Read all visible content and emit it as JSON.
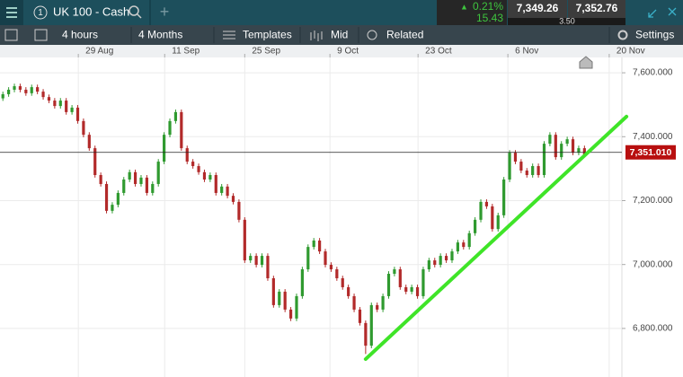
{
  "toolbar": {
    "tab_number": "1",
    "instrument": "UK 100 - Cash",
    "change_pct": "0.21%",
    "change_pts": "15.43",
    "sell": "7,349.26",
    "spread": "3.50",
    "buy": "7,352.76"
  },
  "controls": {
    "interval": "4 hours",
    "range": "4 Months",
    "templates": "Templates",
    "price_mode": "Mid",
    "related": "Related",
    "settings": "Settings"
  },
  "chart_data": {
    "type": "candlestick",
    "up_color": "#2f9a2f",
    "down_color": "#b22a2a",
    "open": [
      7520,
      7533,
      7547,
      7558,
      7547,
      7536,
      7555,
      7541,
      7524,
      7513,
      7496,
      7513,
      7477,
      7491,
      7449,
      7406,
      7364,
      7280,
      7252,
      7168,
      7187,
      7224,
      7266,
      7289,
      7252,
      7272,
      7224,
      7252,
      7322,
      7406,
      7449,
      7477,
      7364,
      7322,
      7308,
      7289,
      7266,
      7280,
      7224,
      7244,
      7215,
      7196,
      7140,
      7013,
      7027,
      6999,
      7027,
      6957,
      6873,
      6915,
      6859,
      6831,
      6901,
      6985,
      7055,
      7075,
      7041,
      6999,
      6985,
      6957,
      6929,
      6901,
      6859,
      6817,
      6746,
      6873,
      6859,
      6901,
      6971,
      6985,
      6929,
      6915,
      6929,
      6901,
      6985,
      7013,
      6999,
      7027,
      7013,
      7041,
      7069,
      7055,
      7098,
      7140,
      7196,
      7182,
      7111,
      7154,
      7266,
      7350,
      7322,
      7294,
      7280,
      7308,
      7280,
      7378,
      7406,
      7336,
      7378,
      7392,
      7350,
      7364
    ],
    "close": [
      7533,
      7547,
      7558,
      7547,
      7536,
      7555,
      7541,
      7524,
      7513,
      7496,
      7513,
      7477,
      7491,
      7449,
      7406,
      7364,
      7280,
      7252,
      7168,
      7187,
      7224,
      7266,
      7289,
      7252,
      7272,
      7224,
      7252,
      7322,
      7406,
      7449,
      7477,
      7364,
      7322,
      7308,
      7289,
      7266,
      7280,
      7224,
      7244,
      7215,
      7196,
      7140,
      7013,
      7027,
      6999,
      7027,
      6957,
      6873,
      6915,
      6859,
      6831,
      6901,
      6985,
      7055,
      7075,
      7041,
      6999,
      6985,
      6957,
      6929,
      6901,
      6859,
      6817,
      6746,
      6873,
      6859,
      6901,
      6971,
      6985,
      6929,
      6915,
      6929,
      6901,
      6985,
      7013,
      6999,
      7027,
      7013,
      7041,
      7069,
      7055,
      7098,
      7140,
      7196,
      7182,
      7111,
      7154,
      7266,
      7350,
      7322,
      7294,
      7280,
      7308,
      7280,
      7378,
      7406,
      7336,
      7378,
      7392,
      7350,
      7364,
      7344
    ],
    "high": [
      7541,
      7555,
      7566,
      7566,
      7555,
      7563,
      7563,
      7549,
      7532,
      7521,
      7521,
      7521,
      7499,
      7499,
      7457,
      7414,
      7372,
      7288,
      7260,
      7195,
      7232,
      7274,
      7297,
      7297,
      7280,
      7280,
      7260,
      7330,
      7414,
      7457,
      7485,
      7485,
      7372,
      7330,
      7316,
      7297,
      7288,
      7288,
      7252,
      7252,
      7223,
      7204,
      7148,
      7035,
      7035,
      7035,
      7035,
      6965,
      6923,
      6923,
      6867,
      6909,
      6993,
      7063,
      7083,
      7083,
      7049,
      7007,
      6993,
      6965,
      6937,
      6909,
      6867,
      6825,
      6881,
      6881,
      6909,
      6979,
      6993,
      6993,
      6937,
      6937,
      6937,
      6993,
      7021,
      7021,
      7035,
      7035,
      7049,
      7077,
      7077,
      7106,
      7148,
      7204,
      7204,
      7190,
      7162,
      7274,
      7358,
      7358,
      7330,
      7302,
      7316,
      7316,
      7386,
      7414,
      7414,
      7386,
      7400,
      7400,
      7372,
      7372
    ],
    "low": [
      7512,
      7525,
      7539,
      7539,
      7528,
      7528,
      7533,
      7516,
      7505,
      7488,
      7488,
      7469,
      7469,
      7441,
      7398,
      7356,
      7272,
      7244,
      7160,
      7160,
      7179,
      7216,
      7258,
      7244,
      7244,
      7216,
      7216,
      7244,
      7314,
      7398,
      7441,
      7356,
      7314,
      7300,
      7281,
      7258,
      7258,
      7216,
      7216,
      7207,
      7188,
      7132,
      7005,
      7005,
      6991,
      6991,
      6949,
      6865,
      6865,
      6851,
      6823,
      6823,
      6893,
      6977,
      7047,
      7033,
      6991,
      6977,
      6949,
      6921,
      6893,
      6851,
      6809,
      6720,
      6738,
      6851,
      6851,
      6893,
      6963,
      6921,
      6907,
      6907,
      6893,
      6893,
      6977,
      6991,
      6991,
      7005,
      7005,
      7033,
      7047,
      7047,
      7090,
      7132,
      7174,
      7103,
      7103,
      7146,
      7258,
      7314,
      7286,
      7272,
      7272,
      7272,
      7272,
      7370,
      7328,
      7328,
      7370,
      7342,
      7342,
      7336
    ],
    "xlim": [
      0,
      108
    ],
    "xticks": [
      {
        "value": 13.6,
        "label": "29 Aug"
      },
      {
        "value": 28.6,
        "label": "11 Sep"
      },
      {
        "value": 42.5,
        "label": "25 Sep"
      },
      {
        "value": 57.3,
        "label": "9 Oct"
      },
      {
        "value": 72.6,
        "label": "23 Oct"
      },
      {
        "value": 88.2,
        "label": "6 Nov"
      },
      {
        "value": 105.8,
        "label": "20 Nov"
      }
    ],
    "ylim": [
      6648,
      7648
    ],
    "yticks": [
      {
        "value": 6800,
        "label": "6,800.000"
      },
      {
        "value": 7000,
        "label": "7,000.000"
      },
      {
        "value": 7200,
        "label": "7,200.000"
      },
      {
        "value": 7400,
        "label": "7,400.000"
      },
      {
        "value": 7600,
        "label": "7,600.000"
      }
    ],
    "grid": true,
    "current_price": {
      "value": 7351.01,
      "label": "7,351.010"
    },
    "trendline": {
      "x": [
        63.5,
        108.8
      ],
      "y": [
        6704,
        7463
      ],
      "color": "#3fe428"
    }
  }
}
